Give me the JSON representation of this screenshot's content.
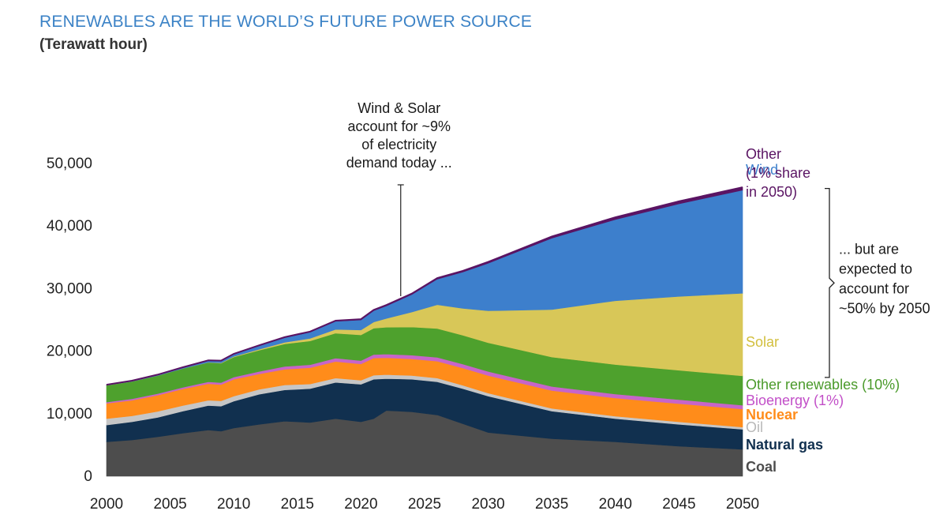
{
  "chart_data": {
    "type": "area",
    "stacked": true,
    "title": "RENEWABLES ARE THE WORLD’S FUTURE POWER SOURCE",
    "subtitle": "(Terawatt hour)",
    "xlabel": "",
    "ylabel": "",
    "xlim": [
      2000,
      2050
    ],
    "ylim": [
      0,
      50000
    ],
    "x_ticks": [
      "2000",
      "2005",
      "2010",
      "2015",
      "2020",
      "2025",
      "2030",
      "2035",
      "2040",
      "2045",
      "2050"
    ],
    "y_ticks": [
      "0",
      "10,000",
      "20,000",
      "30,000",
      "40,000",
      "50,000"
    ],
    "grid": false,
    "x": [
      2000,
      2002,
      2004,
      2006,
      2008,
      2009,
      2010,
      2012,
      2014,
      2016,
      2018,
      2020,
      2021,
      2022,
      2024,
      2026,
      2028,
      2030,
      2035,
      2040,
      2045,
      2050
    ],
    "series": [
      {
        "name": "Coal",
        "color": "#4d4d4d",
        "values": [
          5500,
          5800,
          6300,
          6900,
          7400,
          7200,
          7700,
          8300,
          8800,
          8600,
          9200,
          8700,
          9200,
          10500,
          10300,
          9800,
          8400,
          7000,
          6000,
          5500,
          4800,
          4300
        ]
      },
      {
        "name": "Natural gas",
        "color": "#11304f",
        "values": [
          2700,
          2900,
          3100,
          3500,
          3900,
          4000,
          4300,
          4800,
          5000,
          5400,
          5800,
          6000,
          6300,
          5100,
          5200,
          5300,
          5600,
          5800,
          4400,
          3700,
          3500,
          3200
        ]
      },
      {
        "name": "Oil",
        "color": "#c6c6c6",
        "values": [
          1000,
          950,
          950,
          900,
          850,
          850,
          800,
          800,
          800,
          750,
          700,
          650,
          650,
          650,
          600,
          600,
          550,
          500,
          450,
          400,
          400,
          350
        ]
      },
      {
        "name": "Nuclear",
        "color": "#ff8c1a",
        "values": [
          2450,
          2500,
          2600,
          2650,
          2650,
          2600,
          2700,
          2450,
          2500,
          2600,
          2650,
          2600,
          2750,
          2700,
          2650,
          2700,
          2750,
          2800,
          2850,
          2900,
          2900,
          2900
        ]
      },
      {
        "name": "Bioenergy",
        "color": "#c765c9",
        "values": [
          200,
          220,
          240,
          270,
          300,
          320,
          350,
          400,
          450,
          480,
          520,
          540,
          560,
          580,
          600,
          620,
          640,
          650,
          650,
          650,
          650,
          600
        ]
      },
      {
        "name": "Other renewables",
        "color": "#4ea12d",
        "values": [
          2700,
          2800,
          2900,
          3000,
          3100,
          3100,
          3200,
          3400,
          3600,
          3800,
          4000,
          4100,
          4200,
          4300,
          4500,
          4600,
          4600,
          4600,
          4700,
          4700,
          4700,
          4700
        ]
      },
      {
        "name": "Solar",
        "color": "#d8c758",
        "values": [
          0,
          0,
          0,
          0,
          20,
          50,
          100,
          150,
          250,
          400,
          600,
          800,
          1000,
          1400,
          2400,
          3800,
          4300,
          5100,
          7600,
          10200,
          11800,
          13200
        ]
      },
      {
        "name": "Wind",
        "color": "#3d7fcc",
        "values": [
          30,
          60,
          100,
          150,
          250,
          300,
          350,
          550,
          750,
          1000,
          1300,
          1600,
          1800,
          2000,
          2800,
          4100,
          5800,
          7600,
          11400,
          13000,
          14800,
          16500
        ]
      },
      {
        "name": "Other",
        "color": "#5a1463",
        "values": [
          50,
          50,
          50,
          60,
          60,
          60,
          70,
          80,
          90,
          100,
          110,
          120,
          130,
          140,
          150,
          170,
          190,
          220,
          280,
          350,
          400,
          450
        ]
      }
    ],
    "series_labels": {
      "Coal": [
        "Coal"
      ],
      "Natural gas": [
        "Natural gas"
      ],
      "Oil": [
        "Oil"
      ],
      "Nuclear": [
        "Nuclear"
      ],
      "Bioenergy": [
        "Bioenergy (1%)"
      ],
      "Other renewables": [
        "Other renewables (10%)"
      ],
      "Solar": [
        "Solar"
      ],
      "Wind": [
        "Wind"
      ],
      "Other": [
        "Other",
        "(1% share",
        "in 2050)"
      ]
    },
    "annotations": [
      {
        "id": "wind-solar-today",
        "lines": [
          "Wind & Solar",
          "account for ~9%",
          "of electricity",
          "demand today ..."
        ],
        "x": 2023
      },
      {
        "id": "wind-solar-2050",
        "lines": [
          "... but are",
          "expected to",
          "account for",
          "~50% by 2050"
        ],
        "x": 2050
      }
    ]
  }
}
